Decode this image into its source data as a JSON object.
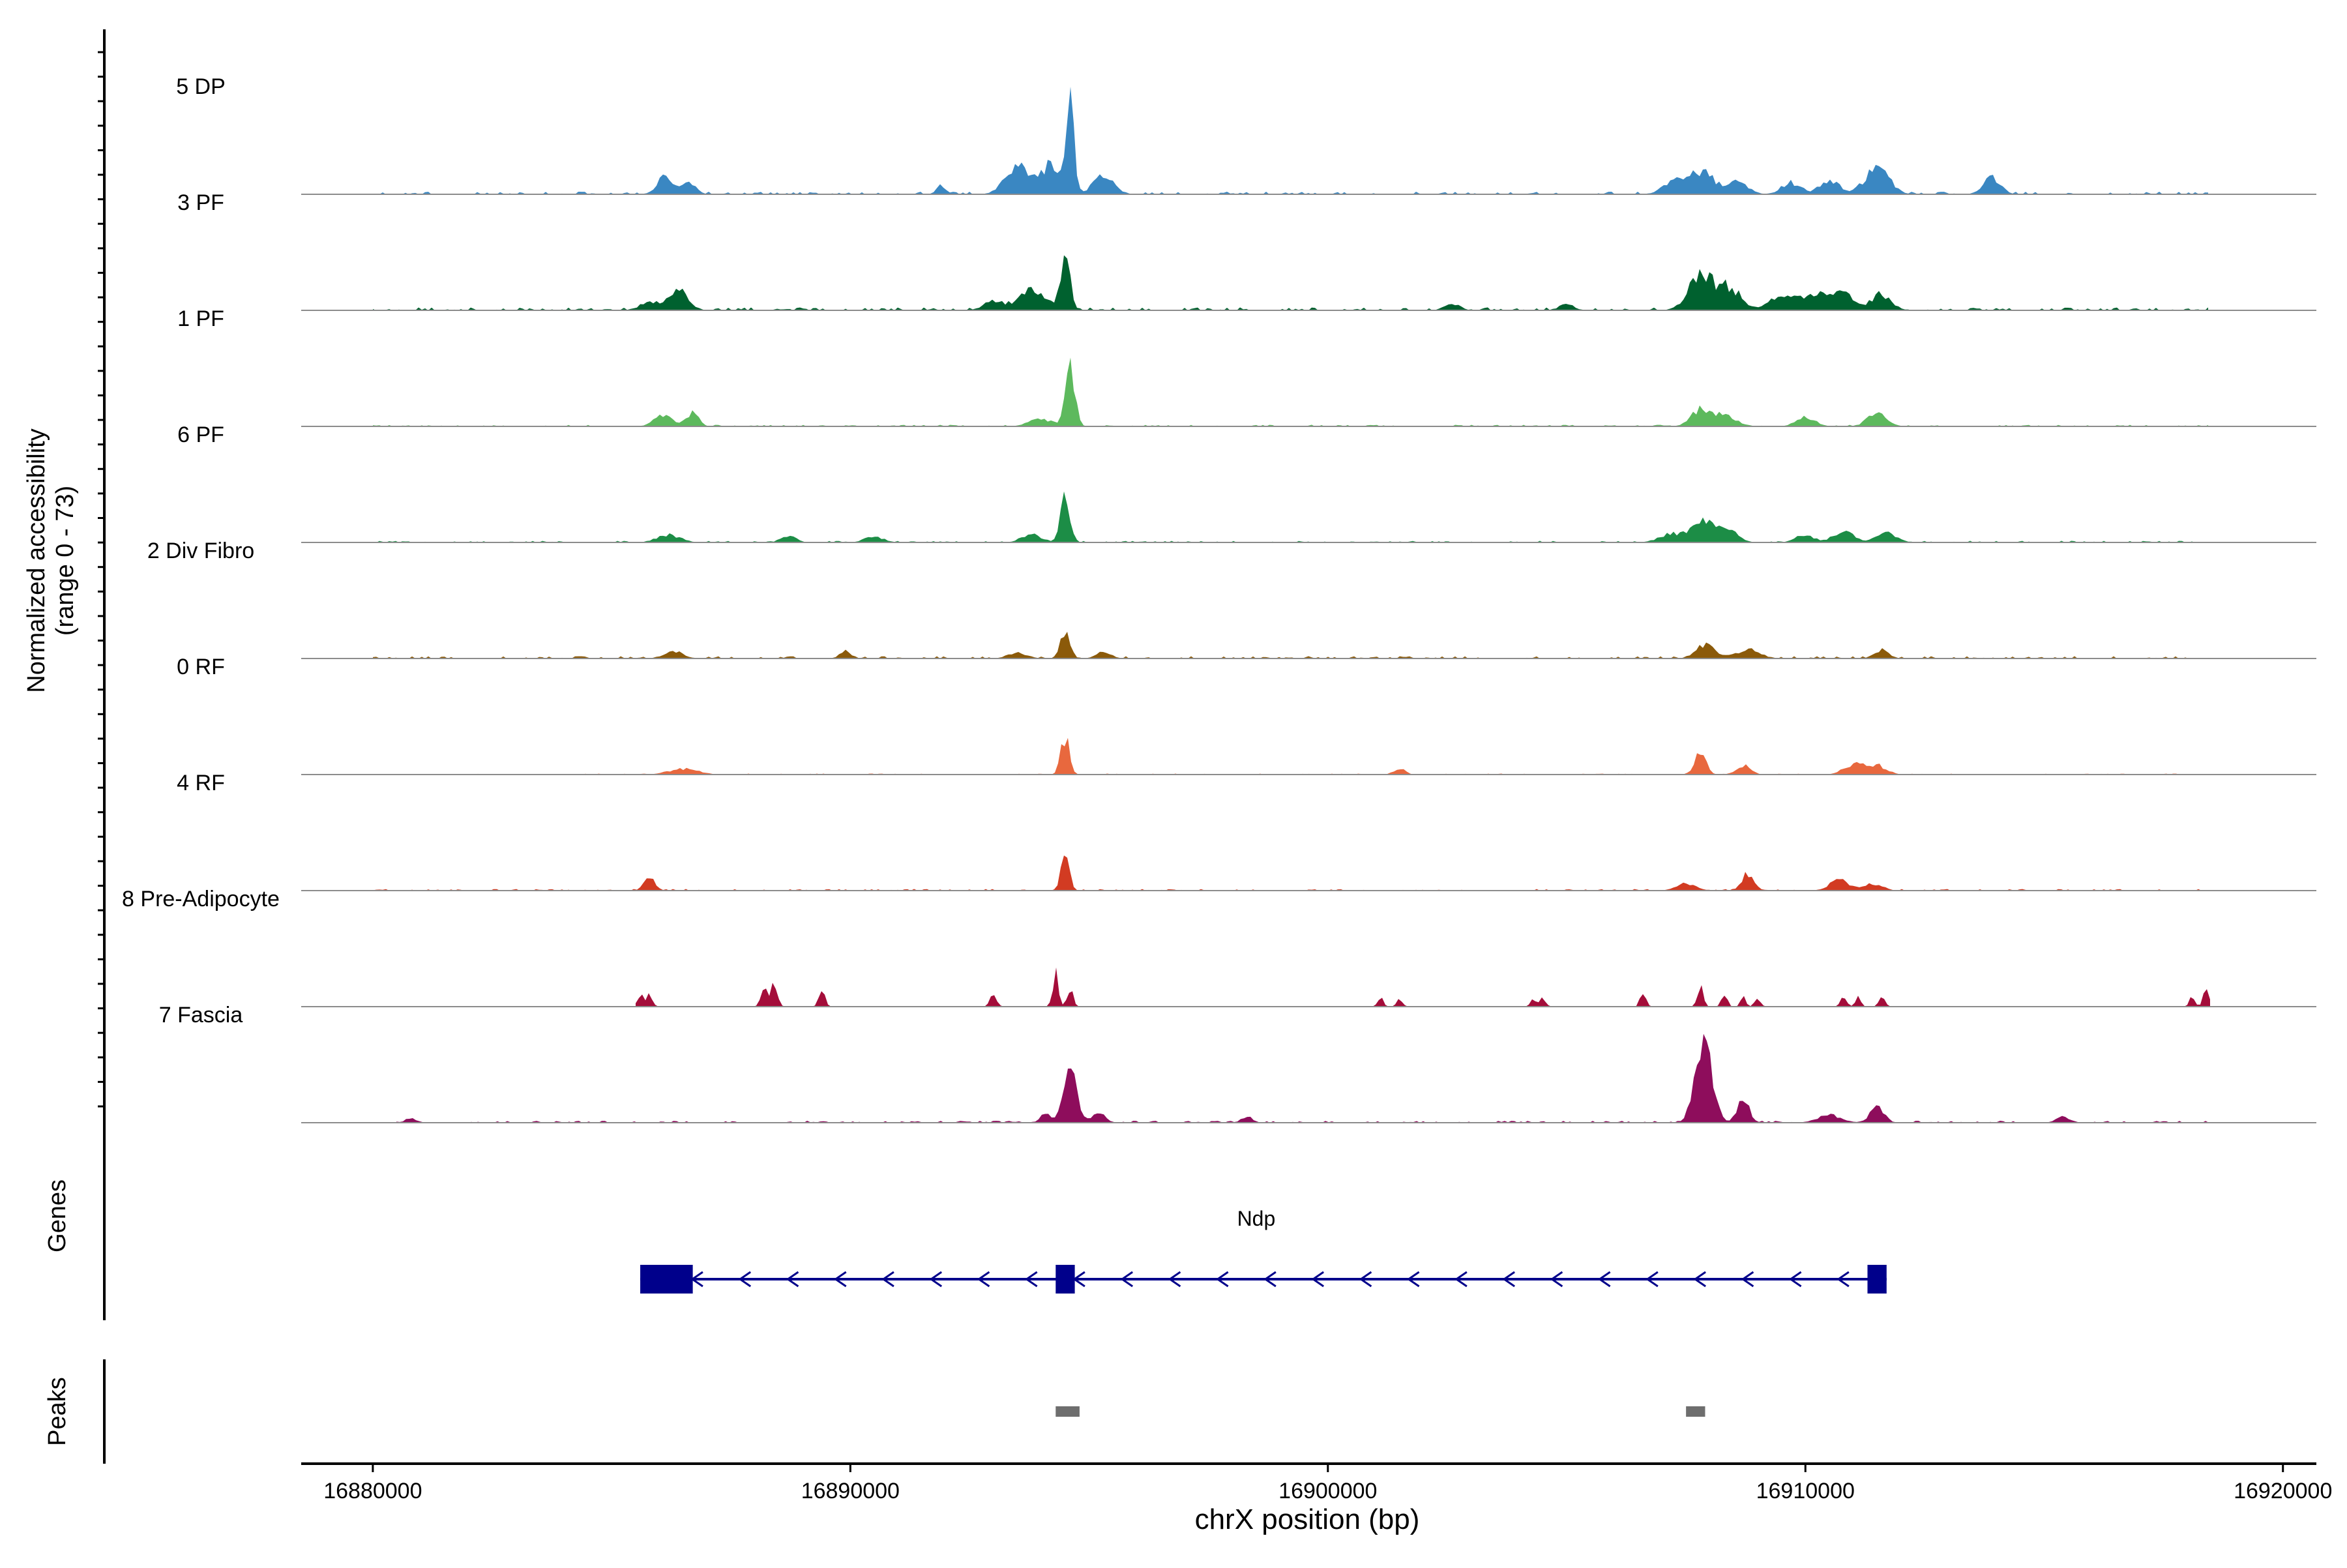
{
  "chart_data": {
    "type": "area",
    "title": "",
    "xlabel": "chrX position (bp)",
    "ylabel": "Normalized accessibility",
    "ylabel_range": "(range 0 - 73)",
    "y_max": 73,
    "xlim": [
      16878500,
      16920700
    ],
    "x_ticks": [
      16880000,
      16890000,
      16900000,
      16910000,
      16920000
    ],
    "x_tick_labels": [
      "16880000",
      "16890000",
      "16900000",
      "16910000",
      "16920000"
    ],
    "tracks": [
      {
        "name": "5 DP",
        "color": "#3A87C2",
        "bg": 0.8,
        "coverage": [
          16880000,
          16918500
        ],
        "peaks": [
          [
            16886100,
            13,
            150
          ],
          [
            16886600,
            9,
            150
          ],
          [
            16891900,
            6,
            100
          ],
          [
            16893500,
            18,
            250
          ],
          [
            16894200,
            19,
            220
          ],
          [
            16894600,
            73,
            80
          ],
          [
            16895300,
            12,
            220
          ],
          [
            16907200,
            7,
            200
          ],
          [
            16907800,
            15,
            300
          ],
          [
            16908600,
            9,
            200
          ],
          [
            16909700,
            8,
            200
          ],
          [
            16910500,
            10,
            200
          ],
          [
            16911500,
            18,
            250
          ],
          [
            16913900,
            11,
            180
          ]
        ]
      },
      {
        "name": "3 PF",
        "color": "#00612F",
        "bg": 0.9,
        "coverage": [
          16880000,
          16918500
        ],
        "peaks": [
          [
            16885800,
            6,
            200
          ],
          [
            16886400,
            13,
            200
          ],
          [
            16893000,
            6,
            200
          ],
          [
            16893800,
            13,
            300
          ],
          [
            16894500,
            35,
            100
          ],
          [
            16902600,
            5,
            150
          ],
          [
            16905000,
            5,
            150
          ],
          [
            16907800,
            23,
            250
          ],
          [
            16908400,
            15,
            250
          ],
          [
            16909500,
            10,
            250
          ],
          [
            16910200,
            11,
            250
          ],
          [
            16910800,
            11,
            250
          ],
          [
            16911600,
            11,
            200
          ]
        ]
      },
      {
        "name": "1 PF",
        "color": "#5DB95D",
        "bg": 0.5,
        "coverage": [
          16880000,
          16918500
        ],
        "peaks": [
          [
            16886100,
            8,
            200
          ],
          [
            16886700,
            9,
            120
          ],
          [
            16894000,
            5,
            250
          ],
          [
            16894600,
            38,
            100
          ],
          [
            16907800,
            11,
            200
          ],
          [
            16908300,
            7,
            250
          ],
          [
            16910000,
            6,
            200
          ],
          [
            16911500,
            9,
            200
          ]
        ]
      },
      {
        "name": "6 PF",
        "color": "#1C8D46",
        "bg": 0.5,
        "coverage": [
          16880000,
          16918500
        ],
        "peaks": [
          [
            16886200,
            5,
            250
          ],
          [
            16888700,
            5,
            150
          ],
          [
            16890500,
            4,
            200
          ],
          [
            16893800,
            6,
            200
          ],
          [
            16894500,
            30,
            100
          ],
          [
            16907200,
            6,
            250
          ],
          [
            16907900,
            14,
            250
          ],
          [
            16908400,
            7,
            200
          ],
          [
            16910000,
            5,
            200
          ],
          [
            16910800,
            8,
            200
          ],
          [
            16911700,
            7,
            200
          ]
        ]
      },
      {
        "name": "2 Div Fibro",
        "color": "#8B5A0A",
        "bg": 0.7,
        "coverage": [
          16880000,
          16918500
        ],
        "peaks": [
          [
            16886300,
            5,
            200
          ],
          [
            16889900,
            5,
            120
          ],
          [
            16893500,
            4,
            200
          ],
          [
            16894500,
            18,
            100
          ],
          [
            16895300,
            5,
            150
          ],
          [
            16907900,
            9,
            200
          ],
          [
            16908800,
            6,
            250
          ],
          [
            16911600,
            6,
            150
          ]
        ]
      },
      {
        "name": "0 RF",
        "color": "#E8683E",
        "bg": 0.3,
        "coverage": [
          16882000,
          16918500
        ],
        "peaks": [
          [
            16886500,
            4,
            300
          ],
          [
            16894500,
            25,
            90
          ],
          [
            16901500,
            4,
            120
          ],
          [
            16907800,
            14,
            120
          ],
          [
            16908700,
            6,
            150
          ],
          [
            16911000,
            7,
            200
          ],
          [
            16911500,
            6,
            200
          ]
        ]
      },
      {
        "name": "4 RF",
        "color": "#D23B22",
        "bg": 0.5,
        "coverage": [
          16880000,
          16918500
        ],
        "peaks": [
          [
            16885800,
            8,
            120
          ],
          [
            16894500,
            22,
            90
          ],
          [
            16907500,
            5,
            200
          ],
          [
            16908800,
            12,
            120
          ],
          [
            16910700,
            7,
            200
          ],
          [
            16911400,
            5,
            200
          ]
        ]
      },
      {
        "name": "8 Pre-Adipocyte",
        "color": "#A40D3A",
        "bg": 0,
        "coverage": [
          16885500,
          16918500
        ],
        "peaks": [
          [
            16885600,
            8,
            60
          ],
          [
            16885800,
            8,
            60
          ],
          [
            16888200,
            12,
            70
          ],
          [
            16888400,
            14,
            70
          ],
          [
            16889400,
            13,
            60
          ],
          [
            16893000,
            8,
            70
          ],
          [
            16894300,
            22,
            60
          ],
          [
            16894600,
            12,
            60
          ],
          [
            16901100,
            6,
            60
          ],
          [
            16901500,
            6,
            60
          ],
          [
            16904300,
            6,
            60
          ],
          [
            16904500,
            6,
            60
          ],
          [
            16906600,
            9,
            60
          ],
          [
            16907800,
            13,
            60
          ],
          [
            16908300,
            8,
            60
          ],
          [
            16908700,
            6,
            60
          ],
          [
            16909000,
            6,
            60
          ],
          [
            16910800,
            7,
            60
          ],
          [
            16911100,
            6,
            60
          ],
          [
            16911600,
            9,
            60
          ],
          [
            16918100,
            7,
            60
          ],
          [
            16918400,
            14,
            60
          ]
        ]
      },
      {
        "name": "7 Fascia",
        "color": "#8E0D5C",
        "bg": 0.6,
        "coverage": [
          16880500,
          16918500
        ],
        "peaks": [
          [
            16880800,
            3,
            120
          ],
          [
            16894100,
            6,
            120
          ],
          [
            16894600,
            40,
            130
          ],
          [
            16895200,
            6,
            150
          ],
          [
            16898300,
            4,
            120
          ],
          [
            16907800,
            46,
            150
          ],
          [
            16908000,
            20,
            150
          ],
          [
            16908700,
            18,
            120
          ],
          [
            16910500,
            5,
            250
          ],
          [
            16911500,
            10,
            150
          ],
          [
            16915400,
            4,
            150
          ]
        ]
      }
    ],
    "gene": {
      "name": "Ndp",
      "strand": "-",
      "start": 16885600,
      "end": 16911700,
      "exons": [
        [
          16885600,
          16886700
        ],
        [
          16894300,
          16894700
        ],
        [
          16911300,
          16911700
        ]
      ]
    },
    "peaks_track": [
      [
        16894300,
        16894800
      ],
      [
        16907500,
        16907900
      ]
    ],
    "panel_labels": {
      "genes": "Genes",
      "peaks": "Peaks"
    },
    "colors": {
      "gene": "#00008B",
      "peak": "#6E6E6E",
      "axis": "#000000",
      "baseline": "#8C8C8C"
    }
  }
}
